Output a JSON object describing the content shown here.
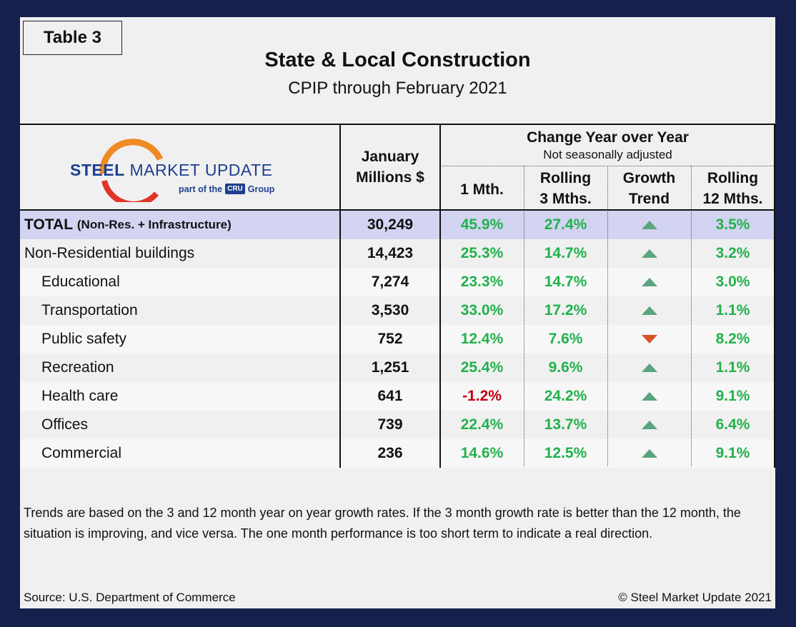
{
  "tag": "Table 3",
  "title": "State & Local Construction",
  "subtitle": "CPIP through February 2021",
  "logo": {
    "brand_bold": "STEEL",
    "brand_rest": "MARKET UPDATE",
    "part_of": "part of the",
    "group_badge": "CRU",
    "group": "Group"
  },
  "headers": {
    "january": "January",
    "millions": "Millions $",
    "change": "Change Year over Year",
    "nsa": "Not seasonally adjusted",
    "m1": "1 Mth.",
    "rolling3_a": "Rolling",
    "rolling3_b": "3 Mths.",
    "trend_a": "Growth",
    "trend_b": "Trend",
    "rolling12_a": "Rolling",
    "rolling12_b": "12 Mths."
  },
  "total": {
    "label": "TOTAL",
    "label_small": "(Non-Res. + Infrastructure)",
    "value": "30,249",
    "m1": "45.9%",
    "r3": "27.4%",
    "trend": "up",
    "r12": "3.5%"
  },
  "rows": [
    {
      "name": "Non-Residential buildings",
      "value": "14,423",
      "m1": "25.3%",
      "r3": "14.7%",
      "trend": "up",
      "r12": "3.2%"
    },
    {
      "name": "Educational",
      "value": "7,274",
      "m1": "23.3%",
      "r3": "14.7%",
      "trend": "up",
      "r12": "3.0%"
    },
    {
      "name": "Transportation",
      "value": "3,530",
      "m1": "33.0%",
      "r3": "17.2%",
      "trend": "up",
      "r12": "1.1%"
    },
    {
      "name": "Public safety",
      "value": "752",
      "m1": "12.4%",
      "r3": "7.6%",
      "trend": "down",
      "r12": "8.2%"
    },
    {
      "name": "Recreation",
      "value": "1,251",
      "m1": "25.4%",
      "r3": "9.6%",
      "trend": "up",
      "r12": "1.1%"
    },
    {
      "name": "Health care",
      "value": "641",
      "m1": "-1.2%",
      "r3": "24.2%",
      "trend": "up",
      "r12": "9.1%"
    },
    {
      "name": "Offices",
      "value": "739",
      "m1": "22.4%",
      "r3": "13.7%",
      "trend": "up",
      "r12": "6.4%"
    },
    {
      "name": "Commercial",
      "value": "236",
      "m1": "14.6%",
      "r3": "12.5%",
      "trend": "up",
      "r12": "9.1%"
    }
  ],
  "note": "Trends are based on the 3 and 12 month year on year growth rates. If the 3 month growth rate is better than the 12 month, the situation is improving, and vice versa. The one month performance is too short term to indicate a real direction.",
  "source": "Source: U.S. Department of Commerce",
  "copyright": "© Steel Market Update 2021",
  "colors": {
    "frame": "#16204d",
    "positive": "#22b14c",
    "negative": "#c0000f",
    "trend_up": "#5aa47e",
    "trend_down": "#d9532a",
    "total_row": "#d2d4f1"
  }
}
